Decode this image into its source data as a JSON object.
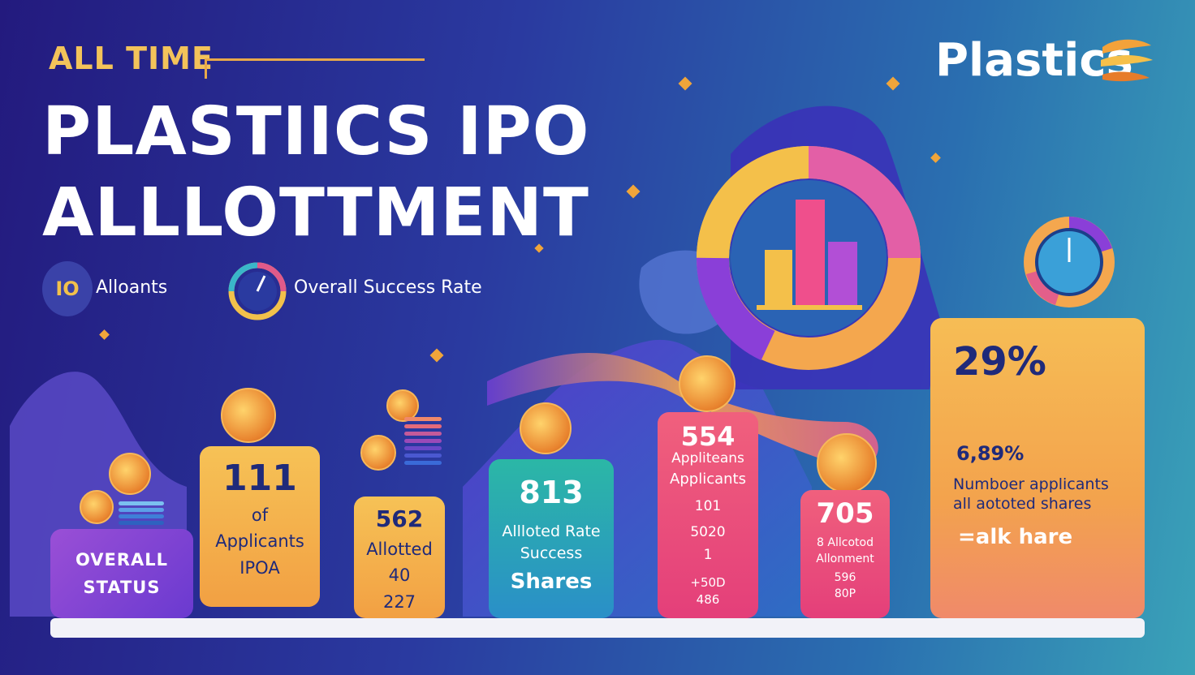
{
  "header": {
    "kicker": "ALL TIME",
    "title_line1": "PLASTIICS IPO",
    "title_line2": "ALLLOTTMENT",
    "brand": "Plastics"
  },
  "legend": {
    "badge": "IO",
    "item1": "Alloants",
    "item2": "Overall Success Rate"
  },
  "cards": {
    "c1": {
      "line1": "OVERALL",
      "line2": "STATUS"
    },
    "c2": {
      "big": "111",
      "l1": "of",
      "l2": "Applicants",
      "l3": "IPOA"
    },
    "c3": {
      "big": "562",
      "l1": "Allotted",
      "l2": "40",
      "l3": "227"
    },
    "c4": {
      "big": "813",
      "l1": "Allloted Rate",
      "l2": "Success",
      "l3": "Shares"
    },
    "c5": {
      "big": "554",
      "l1": "Appliteans",
      "l2": "Applicants",
      "l3": "101",
      "l4": "5020",
      "l5": "1",
      "l6": "+50D",
      "l7": "486"
    },
    "c6": {
      "big": "705",
      "l1": "8 Allcotod",
      "l2": "Allonment",
      "l3": "596",
      "l4": "80P"
    },
    "c7": {
      "big": "29%",
      "l1": "6,89%",
      "l2": "Numboer applicants",
      "l3": "all aototed shares",
      "l4": "=alk hare"
    }
  },
  "colors": {
    "gold": "#f3c35a",
    "purple": "#8b3fd6",
    "orange": "#f4b352",
    "teal": "#2bb0a3",
    "pink": "#ef4f7d",
    "navy": "#232a7a"
  }
}
